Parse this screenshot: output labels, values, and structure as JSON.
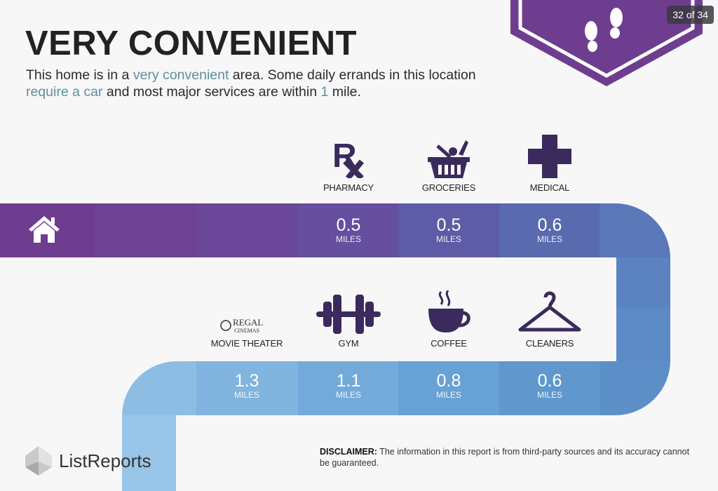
{
  "title": "VERY CONVENIENT",
  "description": {
    "part1": "This home is in a ",
    "highlight1": "very convenient",
    "part2": " area. Some daily errands in this location ",
    "highlight2": "require a car",
    "part3": " and most major services are within ",
    "highlight3": "1",
    "part4": " mile."
  },
  "slide_counter": "32 of 34",
  "badge_icon": "footprints-icon",
  "home_icon": "house-icon",
  "colors": {
    "icon": "#3b2a5c",
    "purple": "#6e3d8f",
    "light_blue": "#98c5e8",
    "highlight": "#5f8f9a"
  },
  "top_row": [
    {
      "label": "PHARMACY",
      "icon": "rx-icon",
      "distance": "0.5",
      "unit": "MILES"
    },
    {
      "label": "GROCERIES",
      "icon": "basket-icon",
      "distance": "0.5",
      "unit": "MILES"
    },
    {
      "label": "MEDICAL",
      "icon": "medical-cross-icon",
      "distance": "0.6",
      "unit": "MILES"
    }
  ],
  "bottom_row": [
    {
      "label": "MOVIE THEATER",
      "icon": "regal-cinemas-logo",
      "logo_text": "REGAL CINEMAS",
      "distance": "1.3",
      "unit": "MILES"
    },
    {
      "label": "GYM",
      "icon": "dumbbell-icon",
      "distance": "1.1",
      "unit": "MILES"
    },
    {
      "label": "COFFEE",
      "icon": "coffee-cup-icon",
      "distance": "0.8",
      "unit": "MILES"
    },
    {
      "label": "CLEANERS",
      "icon": "hanger-icon",
      "distance": "0.6",
      "unit": "MILES"
    }
  ],
  "footer": {
    "logo": "ListReports",
    "disclaimer_label": "DISCLAIMER:",
    "disclaimer_text": " The information in this report is from third-party sources and its accuracy cannot be guaranteed."
  }
}
